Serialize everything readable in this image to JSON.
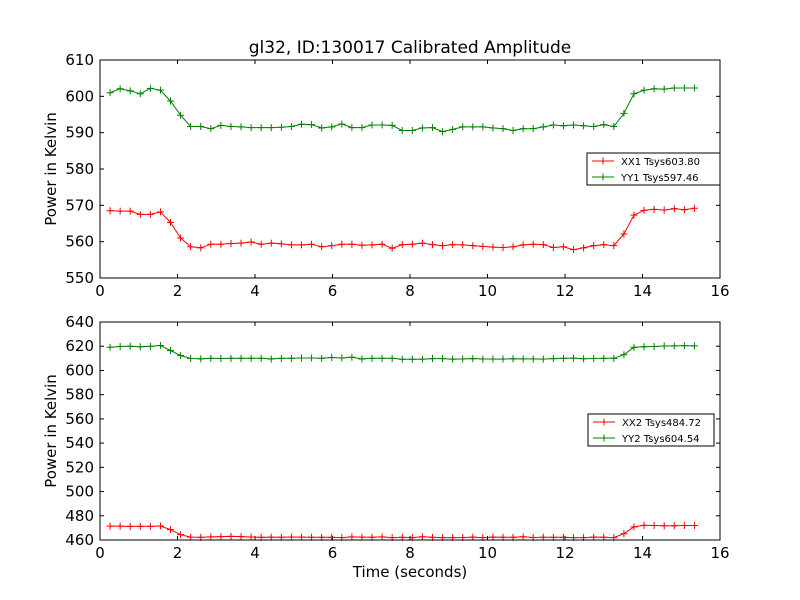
{
  "chart_data": [
    {
      "type": "line",
      "title": "gl32, ID:130017 Calibrated Amplitude",
      "xlabel": "",
      "ylabel": "Power in Kelvin",
      "xlim": [
        0,
        16
      ],
      "ylim": [
        550,
        610
      ],
      "xticks": [
        "0",
        "2",
        "4",
        "6",
        "8",
        "10",
        "12",
        "14",
        "16"
      ],
      "yticks": [
        "550",
        "560",
        "570",
        "580",
        "590",
        "600",
        "610"
      ],
      "grid": false,
      "legend_position": "center-right",
      "x": [
        0.26,
        0.52,
        0.78,
        1.04,
        1.3,
        1.56,
        1.82,
        2.08,
        2.34,
        2.6,
        2.86,
        3.12,
        3.38,
        3.64,
        3.9,
        4.16,
        4.42,
        4.68,
        4.94,
        5.2,
        5.46,
        5.72,
        5.98,
        6.24,
        6.5,
        6.76,
        7.02,
        7.28,
        7.54,
        7.8,
        8.06,
        8.32,
        8.58,
        8.84,
        9.1,
        9.36,
        9.62,
        9.88,
        10.14,
        10.4,
        10.66,
        10.92,
        11.18,
        11.44,
        11.7,
        11.96,
        12.22,
        12.48,
        12.74,
        13.0,
        13.26,
        13.52,
        13.78,
        14.04,
        14.3,
        14.56,
        14.82,
        15.08,
        15.34
      ],
      "series": [
        {
          "name": "XX1 Tsys603.80",
          "color": "#ff0000",
          "values": [
            568.5,
            568.4,
            568.4,
            567.5,
            567.5,
            568.2,
            565.3,
            561.0,
            558.6,
            558.3,
            559.3,
            559.3,
            559.5,
            559.6,
            559.9,
            559.3,
            559.6,
            559.4,
            559.1,
            559.1,
            559.3,
            558.6,
            558.9,
            559.3,
            559.3,
            559.0,
            559.1,
            559.3,
            558.2,
            559.2,
            559.3,
            559.6,
            559.2,
            558.9,
            559.2,
            559.1,
            558.9,
            558.7,
            558.5,
            558.4,
            558.6,
            559.1,
            559.3,
            559.2,
            558.4,
            558.6,
            557.8,
            558.3,
            558.9,
            559.2,
            558.9,
            562.1,
            567.3,
            568.6,
            568.9,
            568.7,
            569.1,
            568.8,
            569.2
          ]
        },
        {
          "name": "YY1 Tsys597.46",
          "color": "#008000",
          "values": [
            601.0,
            602.1,
            601.5,
            600.7,
            602.2,
            601.7,
            598.7,
            594.8,
            591.7,
            591.7,
            591.1,
            592.0,
            591.7,
            591.6,
            591.4,
            591.4,
            591.4,
            591.5,
            591.7,
            592.3,
            592.2,
            591.3,
            591.6,
            592.4,
            591.4,
            591.4,
            592.1,
            592.1,
            592.0,
            590.6,
            590.6,
            591.3,
            591.4,
            590.3,
            590.9,
            591.6,
            591.6,
            591.6,
            591.3,
            591.1,
            590.6,
            591.1,
            591.1,
            591.6,
            592.1,
            591.9,
            592.1,
            591.9,
            591.7,
            592.2,
            591.7,
            595.3,
            600.7,
            601.7,
            602.1,
            602.0,
            602.3,
            602.3,
            602.3
          ]
        }
      ]
    },
    {
      "type": "line",
      "title": "",
      "xlabel": "Time (seconds)",
      "ylabel": "Power in Kelvin",
      "xlim": [
        0,
        16
      ],
      "ylim": [
        460,
        640
      ],
      "xticks": [
        "0",
        "2",
        "4",
        "6",
        "8",
        "10",
        "12",
        "14",
        "16"
      ],
      "yticks": [
        "460",
        "480",
        "500",
        "520",
        "540",
        "560",
        "580",
        "600",
        "620",
        "640"
      ],
      "grid": false,
      "legend_position": "center-right",
      "x": [
        0.26,
        0.52,
        0.78,
        1.04,
        1.3,
        1.56,
        1.82,
        2.08,
        2.34,
        2.6,
        2.86,
        3.12,
        3.38,
        3.64,
        3.9,
        4.16,
        4.42,
        4.68,
        4.94,
        5.2,
        5.46,
        5.72,
        5.98,
        6.24,
        6.5,
        6.76,
        7.02,
        7.28,
        7.54,
        7.8,
        8.06,
        8.32,
        8.58,
        8.84,
        9.1,
        9.36,
        9.62,
        9.88,
        10.14,
        10.4,
        10.66,
        10.92,
        11.18,
        11.44,
        11.7,
        11.96,
        12.22,
        12.48,
        12.74,
        13.0,
        13.26,
        13.52,
        13.78,
        14.04,
        14.3,
        14.56,
        14.82,
        15.08,
        15.34
      ],
      "series": [
        {
          "name": "XX2 Tsys484.72",
          "color": "#ff0000",
          "values": [
            471.5,
            471.5,
            471.2,
            471.3,
            471.3,
            471.6,
            468.6,
            464.4,
            462.4,
            462.2,
            462.6,
            462.8,
            463.0,
            462.8,
            462.5,
            462.2,
            462.4,
            462.3,
            462.5,
            462.4,
            462.3,
            462.2,
            462.2,
            462.0,
            462.6,
            462.4,
            462.3,
            462.6,
            462.0,
            462.2,
            462.0,
            462.7,
            462.2,
            462.0,
            462.0,
            462.1,
            462.4,
            462.0,
            462.4,
            462.3,
            462.2,
            462.7,
            462.1,
            462.3,
            462.2,
            462.2,
            462.0,
            462.0,
            462.4,
            462.3,
            462.0,
            465.2,
            470.8,
            472.1,
            472.0,
            471.7,
            471.8,
            472.0,
            472.0
          ]
        },
        {
          "name": "YY2 Tsys604.54",
          "color": "#008000",
          "values": [
            619.2,
            619.8,
            620.0,
            619.6,
            619.9,
            620.6,
            616.5,
            612.3,
            609.9,
            609.6,
            610.0,
            609.9,
            610.0,
            610.0,
            610.0,
            610.0,
            609.5,
            610.0,
            610.0,
            610.3,
            610.3,
            610.0,
            610.7,
            610.3,
            610.9,
            609.5,
            610.0,
            610.0,
            610.0,
            609.2,
            609.2,
            609.3,
            609.8,
            609.8,
            609.3,
            609.5,
            609.8,
            609.5,
            609.4,
            609.4,
            609.7,
            609.5,
            609.5,
            609.4,
            609.8,
            610.0,
            610.2,
            609.7,
            609.9,
            610.0,
            610.0,
            613.0,
            619.1,
            619.6,
            619.8,
            620.2,
            620.3,
            620.5,
            620.3
          ]
        }
      ]
    }
  ]
}
